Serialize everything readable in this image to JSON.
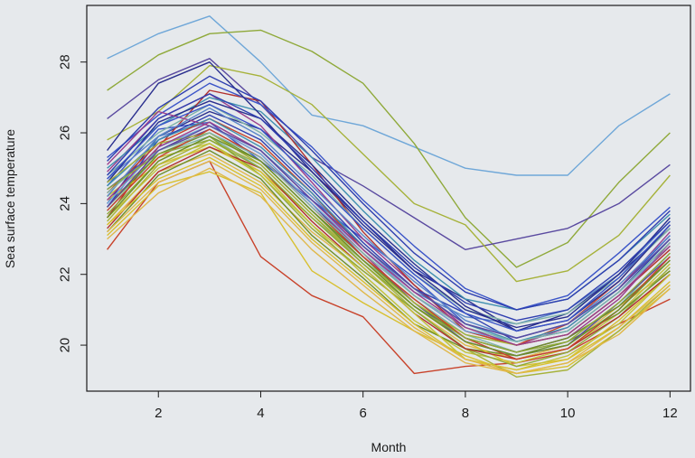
{
  "chart_data": {
    "type": "line",
    "title": "",
    "xlabel": "Month",
    "ylabel": "Sea surface temperature",
    "xlim": [
      0.6,
      12.4
    ],
    "ylim": [
      18.7,
      29.6
    ],
    "x_ticks": [
      2,
      4,
      6,
      8,
      10,
      12
    ],
    "y_ticks": [
      20,
      22,
      24,
      26,
      28
    ],
    "grid": false,
    "legend": "none",
    "palette": [
      "#2f3fb0",
      "#3b55c8",
      "#5a86c8",
      "#6fa7d8",
      "#7fb3a8",
      "#8fa93a",
      "#a6b23a",
      "#c2c23a",
      "#d8c030",
      "#e0b84a",
      "#c8422a",
      "#b2302e",
      "#9a3c8c",
      "#5a4aa0",
      "#2a2f8e",
      "#3f8fb0",
      "#6f8f2a"
    ],
    "x": [
      1,
      2,
      3,
      4,
      5,
      6,
      7,
      8,
      9,
      10,
      11,
      12
    ],
    "series": [
      {
        "color": "#6fa7d8",
        "values": [
          28.1,
          28.8,
          29.3,
          28.0,
          26.5,
          26.2,
          25.6,
          25.0,
          24.8,
          24.8,
          26.2,
          27.1
        ]
      },
      {
        "color": "#8fa93a",
        "values": [
          27.2,
          28.2,
          28.8,
          28.9,
          28.3,
          27.4,
          25.7,
          23.6,
          22.2,
          22.9,
          24.6,
          26.0
        ]
      },
      {
        "color": "#5a4aa0",
        "values": [
          26.4,
          27.5,
          28.1,
          26.8,
          25.3,
          24.5,
          23.6,
          22.7,
          23.0,
          23.3,
          24.0,
          25.1
        ]
      },
      {
        "color": "#a6b23a",
        "values": [
          25.8,
          26.6,
          27.9,
          27.6,
          26.8,
          25.4,
          24.0,
          23.4,
          21.8,
          22.1,
          23.1,
          24.8
        ]
      },
      {
        "color": "#c8422a",
        "values": [
          22.7,
          24.6,
          25.2,
          22.5,
          21.4,
          20.8,
          19.2,
          19.4,
          19.5,
          19.8,
          20.6,
          21.3
        ]
      },
      {
        "color": "#d8c030",
        "values": [
          23.1,
          24.5,
          24.9,
          24.3,
          22.1,
          21.2,
          20.4,
          19.7,
          19.2,
          19.4,
          20.4,
          21.6
        ]
      },
      {
        "color": "#2a2f8e",
        "values": [
          24.0,
          25.9,
          26.6,
          26.1,
          24.9,
          23.4,
          22.1,
          21.3,
          20.4,
          20.9,
          22.0,
          23.3
        ]
      },
      {
        "color": "#3b55c8",
        "values": [
          24.5,
          26.1,
          26.3,
          25.2,
          24.1,
          23.0,
          21.9,
          20.6,
          20.2,
          20.6,
          21.6,
          23.1
        ]
      },
      {
        "color": "#7fb3a8",
        "values": [
          23.8,
          25.4,
          25.9,
          25.0,
          23.6,
          22.4,
          21.3,
          20.3,
          19.8,
          20.2,
          21.1,
          22.6
        ]
      },
      {
        "color": "#e0b84a",
        "values": [
          23.4,
          24.9,
          25.4,
          24.6,
          23.2,
          22.1,
          21.0,
          20.0,
          19.6,
          20.0,
          21.1,
          22.1
        ]
      },
      {
        "color": "#9a3c8c",
        "values": [
          24.9,
          26.4,
          27.1,
          26.2,
          24.6,
          23.0,
          21.7,
          20.5,
          20.0,
          20.5,
          21.6,
          23.2
        ]
      },
      {
        "color": "#3f8fb0",
        "values": [
          25.0,
          26.2,
          27.0,
          26.6,
          25.3,
          23.8,
          22.4,
          21.3,
          21.0,
          21.3,
          22.4,
          23.7
        ]
      },
      {
        "color": "#b2302e",
        "values": [
          23.6,
          25.6,
          27.2,
          26.9,
          25.1,
          23.2,
          21.7,
          20.4,
          20.0,
          20.3,
          21.4,
          22.7
        ]
      },
      {
        "color": "#c2c23a",
        "values": [
          24.2,
          25.3,
          25.7,
          24.9,
          23.4,
          22.0,
          20.7,
          19.8,
          19.5,
          19.9,
          20.9,
          22.3
        ]
      },
      {
        "color": "#5a86c8",
        "values": [
          24.7,
          25.9,
          26.3,
          25.5,
          24.2,
          22.8,
          21.5,
          20.8,
          20.6,
          21.0,
          22.0,
          23.5
        ]
      },
      {
        "color": "#2f3fb0",
        "values": [
          23.9,
          25.8,
          26.5,
          25.8,
          24.4,
          22.9,
          21.6,
          20.9,
          20.1,
          20.4,
          21.5,
          23.0
        ]
      },
      {
        "color": "#6f8f2a",
        "values": [
          23.2,
          24.8,
          25.5,
          24.7,
          23.1,
          21.9,
          20.6,
          19.9,
          19.7,
          20.1,
          20.9,
          22.1
        ]
      },
      {
        "color": "#d8c030",
        "values": [
          24.1,
          25.1,
          25.6,
          24.9,
          23.6,
          22.3,
          21.1,
          20.1,
          19.4,
          19.6,
          20.7,
          22.0
        ]
      },
      {
        "color": "#3b55c8",
        "values": [
          25.3,
          26.5,
          27.4,
          26.8,
          25.6,
          24.1,
          22.8,
          21.6,
          21.0,
          21.4,
          22.6,
          23.9
        ]
      },
      {
        "color": "#a6b23a",
        "values": [
          23.5,
          25.1,
          25.8,
          25.1,
          23.7,
          22.3,
          21.0,
          19.9,
          19.1,
          19.3,
          20.4,
          21.7
        ]
      },
      {
        "color": "#c8422a",
        "values": [
          24.3,
          25.7,
          26.4,
          25.7,
          24.3,
          22.7,
          21.4,
          20.4,
          20.0,
          20.6,
          21.8,
          23.4
        ]
      },
      {
        "color": "#7fb3a8",
        "values": [
          24.8,
          26.0,
          26.8,
          26.0,
          24.8,
          23.3,
          22.0,
          21.0,
          20.6,
          20.9,
          21.9,
          23.3
        ]
      },
      {
        "color": "#2a2f8e",
        "values": [
          24.6,
          26.3,
          26.9,
          26.4,
          25.1,
          23.6,
          22.3,
          21.1,
          20.4,
          20.7,
          21.8,
          23.4
        ]
      },
      {
        "color": "#e0b84a",
        "values": [
          23.0,
          24.3,
          25.0,
          24.2,
          22.7,
          21.5,
          20.4,
          19.5,
          19.2,
          19.5,
          20.3,
          21.6
        ]
      },
      {
        "color": "#9a3c8c",
        "values": [
          25.1,
          26.6,
          26.2,
          25.4,
          24.0,
          22.6,
          21.2,
          20.2,
          19.8,
          20.2,
          21.3,
          22.9
        ]
      },
      {
        "color": "#5a4aa0",
        "values": [
          24.4,
          25.5,
          26.1,
          25.3,
          24.0,
          22.5,
          21.2,
          20.1,
          19.7,
          20.0,
          21.2,
          22.5
        ]
      },
      {
        "color": "#8fa93a",
        "values": [
          23.7,
          25.2,
          25.9,
          24.8,
          23.3,
          22.1,
          21.0,
          19.9,
          19.4,
          19.8,
          20.8,
          22.2
        ]
      },
      {
        "color": "#6fa7d8",
        "values": [
          24.0,
          25.6,
          26.2,
          25.4,
          24.0,
          22.7,
          21.4,
          20.4,
          20.1,
          20.4,
          21.5,
          22.8
        ]
      },
      {
        "color": "#b2302e",
        "values": [
          23.3,
          24.9,
          25.6,
          25.0,
          23.5,
          22.2,
          20.9,
          19.9,
          19.6,
          19.9,
          20.8,
          22.0
        ]
      },
      {
        "color": "#2f3fb0",
        "values": [
          25.2,
          26.7,
          27.6,
          26.9,
          25.5,
          24.0,
          22.6,
          21.5,
          21.0,
          21.3,
          22.4,
          23.8
        ]
      },
      {
        "color": "#c2c23a",
        "values": [
          23.6,
          25.0,
          25.7,
          24.8,
          23.4,
          22.2,
          20.9,
          19.6,
          19.3,
          19.7,
          20.6,
          22.0
        ]
      },
      {
        "color": "#3f8fb0",
        "values": [
          24.5,
          25.8,
          26.4,
          25.6,
          24.3,
          22.8,
          21.6,
          20.6,
          20.1,
          20.5,
          21.6,
          23.0
        ]
      },
      {
        "color": "#6f8f2a",
        "values": [
          23.9,
          25.4,
          26.0,
          25.2,
          23.8,
          22.5,
          21.2,
          20.2,
          19.8,
          20.2,
          21.1,
          22.4
        ]
      },
      {
        "color": "#5a86c8",
        "values": [
          24.2,
          25.9,
          26.7,
          25.9,
          24.5,
          23.1,
          21.8,
          20.7,
          20.2,
          20.6,
          21.7,
          23.1
        ]
      },
      {
        "color": "#d8c030",
        "values": [
          23.4,
          24.7,
          25.3,
          24.5,
          23.0,
          21.8,
          20.6,
          19.6,
          19.3,
          19.6,
          20.5,
          21.8
        ]
      },
      {
        "color": "#2a2f8e",
        "values": [
          25.5,
          27.4,
          28.0,
          26.5,
          24.9,
          23.5,
          22.1,
          21.0,
          20.5,
          20.8,
          22.0,
          23.6
        ]
      },
      {
        "color": "#a6b23a",
        "values": [
          24.6,
          25.7,
          26.0,
          25.1,
          23.7,
          22.4,
          21.2,
          20.3,
          20.0,
          20.3,
          21.4,
          22.8
        ]
      },
      {
        "color": "#c8422a",
        "values": [
          23.8,
          25.3,
          26.1,
          25.3,
          23.9,
          22.5,
          21.3,
          20.2,
          19.6,
          19.9,
          21.0,
          22.5
        ]
      },
      {
        "color": "#7fb3a8",
        "values": [
          24.3,
          25.5,
          26.0,
          25.3,
          23.9,
          22.6,
          21.4,
          20.5,
          20.1,
          20.4,
          21.5,
          22.9
        ]
      },
      {
        "color": "#3b55c8",
        "values": [
          24.7,
          26.2,
          26.8,
          26.1,
          24.7,
          23.3,
          22.0,
          20.9,
          20.4,
          20.7,
          21.9,
          23.4
        ]
      },
      {
        "color": "#e0b84a",
        "values": [
          23.2,
          24.6,
          25.2,
          24.4,
          22.9,
          21.7,
          20.5,
          19.6,
          19.2,
          19.5,
          20.5,
          21.7
        ]
      },
      {
        "color": "#9a3c8c",
        "values": [
          24.1,
          25.6,
          26.3,
          25.5,
          24.1,
          22.7,
          21.5,
          20.5,
          20.0,
          20.3,
          21.4,
          22.8
        ]
      },
      {
        "color": "#8fa93a",
        "values": [
          24.4,
          25.4,
          25.8,
          25.0,
          23.6,
          22.3,
          21.1,
          20.2,
          19.8,
          20.1,
          21.2,
          22.6
        ]
      },
      {
        "color": "#5a4aa0",
        "values": [
          23.9,
          25.5,
          26.2,
          25.5,
          24.1,
          22.8,
          21.6,
          20.6,
          20.2,
          20.6,
          21.6,
          23.0
        ]
      },
      {
        "color": "#2f3fb0",
        "values": [
          24.8,
          26.4,
          27.1,
          26.4,
          25.0,
          23.5,
          22.2,
          21.2,
          20.7,
          21.0,
          22.1,
          23.5
        ]
      },
      {
        "color": "#6f8f2a",
        "values": [
          23.6,
          25.2,
          25.9,
          25.2,
          23.8,
          22.4,
          21.1,
          20.1,
          19.7,
          20.0,
          21.0,
          22.4
        ]
      }
    ]
  }
}
